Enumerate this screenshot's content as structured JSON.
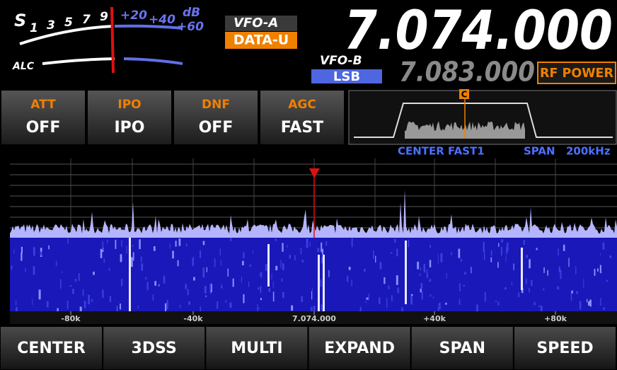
{
  "meter": {
    "s_label": "S",
    "s_scale": [
      "1",
      "3",
      "5",
      "7",
      "9"
    ],
    "plus_scale": [
      "+20",
      "+40",
      "+60"
    ],
    "unit": "dB",
    "alc_label": "ALC"
  },
  "vfo_a": {
    "label": "VFO-A",
    "mode": "DATA-U",
    "frequency": "7.074.000"
  },
  "vfo_b": {
    "label": "VFO-B",
    "mode": "LSB",
    "frequency": "7.083.000"
  },
  "rf_power": "RF POWER",
  "functions": [
    {
      "label": "ATT",
      "value": "OFF"
    },
    {
      "label": "IPO",
      "value": "IPO"
    },
    {
      "label": "DNF",
      "value": "OFF"
    },
    {
      "label": "AGC",
      "value": "FAST"
    }
  ],
  "scope": {
    "marker": "C",
    "status": "CENTER FAST1",
    "span_label": "SPAN",
    "span_value": "200kHz",
    "scale": [
      "-80k",
      "-40k",
      "7.074.000",
      "+40k",
      "+80k"
    ]
  },
  "buttons": [
    "CENTER",
    "3DSS",
    "MULTI",
    "EXPAND",
    "SPAN",
    "SPEED"
  ]
}
